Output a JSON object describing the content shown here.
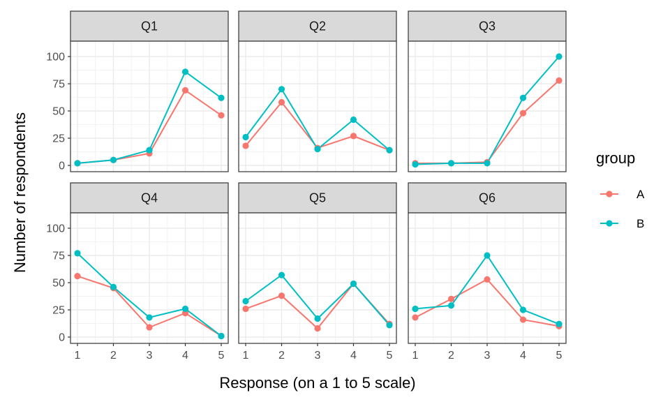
{
  "chart_data": {
    "type": "line",
    "xlabel": "Response (on a 1 to 5 scale)",
    "ylabel": "Number of respondents",
    "x": [
      1,
      2,
      3,
      4,
      5
    ],
    "xlim": [
      1,
      5
    ],
    "ylim": [
      0,
      100
    ],
    "yticks": [
      0,
      25,
      50,
      75,
      100
    ],
    "grid": true,
    "legend": {
      "title": "group",
      "position": "right",
      "entries": [
        {
          "name": "A",
          "color": "#F8766D"
        },
        {
          "name": "B",
          "color": "#00BFC4"
        }
      ]
    },
    "panels": [
      {
        "title": "Q1",
        "series": [
          {
            "name": "A",
            "values": [
              2,
              5,
              11,
              69,
              46
            ]
          },
          {
            "name": "B",
            "values": [
              2,
              5,
              14,
              86,
              62
            ]
          }
        ]
      },
      {
        "title": "Q2",
        "series": [
          {
            "name": "A",
            "values": [
              18,
              58,
              16,
              27,
              14
            ]
          },
          {
            "name": "B",
            "values": [
              26,
              70,
              15,
              42,
              14
            ]
          }
        ]
      },
      {
        "title": "Q3",
        "series": [
          {
            "name": "A",
            "values": [
              2,
              2,
              3,
              48,
              78
            ]
          },
          {
            "name": "B",
            "values": [
              1,
              2,
              2,
              62,
              100
            ]
          }
        ]
      },
      {
        "title": "Q4",
        "series": [
          {
            "name": "A",
            "values": [
              56,
              45,
              9,
              22,
              1
            ]
          },
          {
            "name": "B",
            "values": [
              77,
              46,
              18,
              26,
              1
            ]
          }
        ]
      },
      {
        "title": "Q5",
        "series": [
          {
            "name": "A",
            "values": [
              26,
              38,
              8,
              49,
              12
            ]
          },
          {
            "name": "B",
            "values": [
              33,
              57,
              17,
              49,
              11
            ]
          }
        ]
      },
      {
        "title": "Q6",
        "series": [
          {
            "name": "A",
            "values": [
              18,
              35,
              53,
              16,
              10
            ]
          },
          {
            "name": "B",
            "values": [
              26,
              29,
              75,
              25,
              12
            ]
          }
        ]
      }
    ]
  }
}
